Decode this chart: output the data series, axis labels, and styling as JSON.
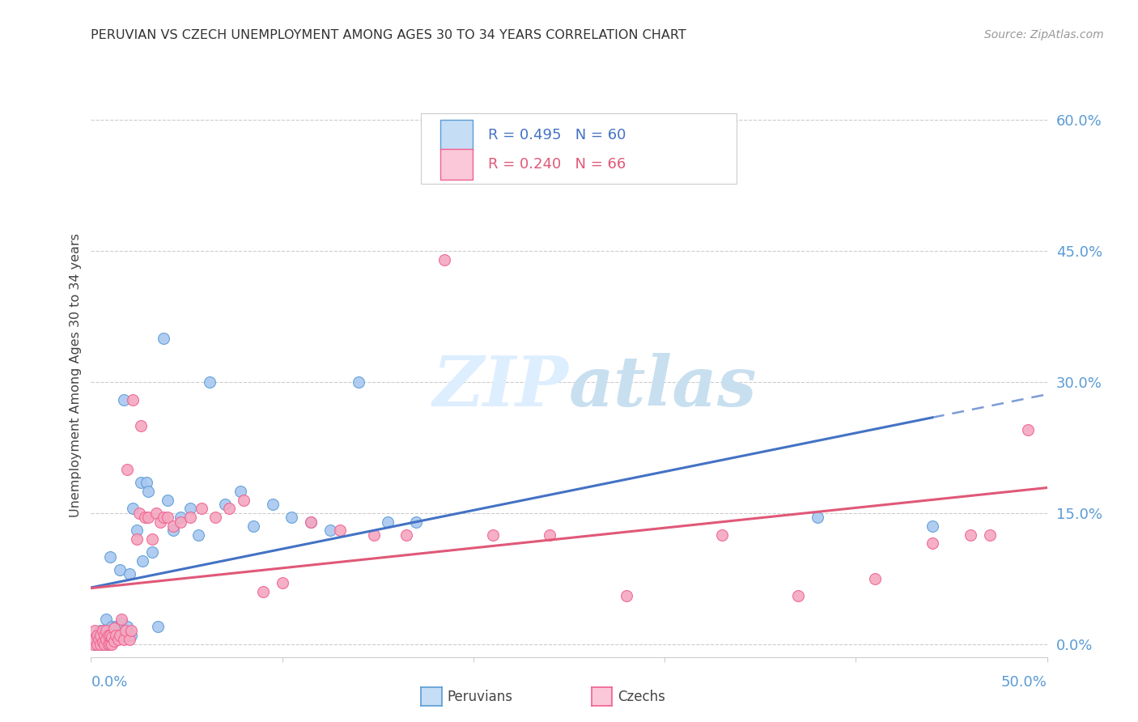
{
  "title": "PERUVIAN VS CZECH UNEMPLOYMENT AMONG AGES 30 TO 34 YEARS CORRELATION CHART",
  "source": "Source: ZipAtlas.com",
  "ylabel": "Unemployment Among Ages 30 to 34 years",
  "ytick_labels": [
    "0.0%",
    "15.0%",
    "30.0%",
    "45.0%",
    "60.0%"
  ],
  "ytick_values": [
    0.0,
    0.15,
    0.3,
    0.45,
    0.6
  ],
  "xmin": 0.0,
  "xmax": 0.5,
  "ymin": -0.015,
  "ymax": 0.63,
  "peruvian_color": "#a8c8f0",
  "czech_color": "#f4a8c0",
  "peruvian_edge_color": "#5b9bd5",
  "czech_edge_color": "#f06090",
  "peruvian_line_color": "#4472c4",
  "czech_line_color": "#e05878",
  "legend_peruvian_fill": "#c5ddf5",
  "legend_czech_fill": "#fac8d8",
  "background_color": "#ffffff",
  "watermark_color": "#ddeeff",
  "peruvian_x": [
    0.001,
    0.002,
    0.003,
    0.003,
    0.004,
    0.004,
    0.005,
    0.005,
    0.006,
    0.006,
    0.007,
    0.007,
    0.008,
    0.008,
    0.008,
    0.009,
    0.009,
    0.01,
    0.01,
    0.01,
    0.01,
    0.011,
    0.012,
    0.013,
    0.013,
    0.014,
    0.015,
    0.016,
    0.017,
    0.018,
    0.019,
    0.02,
    0.021,
    0.022,
    0.024,
    0.026,
    0.027,
    0.029,
    0.03,
    0.032,
    0.035,
    0.038,
    0.04,
    0.043,
    0.047,
    0.052,
    0.056,
    0.062,
    0.07,
    0.078,
    0.085,
    0.095,
    0.105,
    0.115,
    0.125,
    0.14,
    0.155,
    0.17,
    0.38,
    0.44
  ],
  "peruvian_y": [
    0.005,
    0.0,
    0.002,
    0.01,
    0.0,
    0.008,
    0.002,
    0.015,
    0.0,
    0.005,
    0.0,
    0.012,
    0.003,
    0.008,
    0.028,
    0.0,
    0.01,
    0.002,
    0.008,
    0.015,
    0.1,
    0.02,
    0.01,
    0.005,
    0.02,
    0.01,
    0.085,
    0.025,
    0.28,
    0.01,
    0.02,
    0.08,
    0.01,
    0.155,
    0.13,
    0.185,
    0.095,
    0.185,
    0.175,
    0.105,
    0.02,
    0.35,
    0.165,
    0.13,
    0.145,
    0.155,
    0.125,
    0.3,
    0.16,
    0.175,
    0.135,
    0.16,
    0.145,
    0.14,
    0.13,
    0.3,
    0.14,
    0.14,
    0.145,
    0.135
  ],
  "czech_x": [
    0.001,
    0.002,
    0.002,
    0.003,
    0.003,
    0.004,
    0.005,
    0.005,
    0.006,
    0.006,
    0.007,
    0.007,
    0.008,
    0.008,
    0.009,
    0.009,
    0.01,
    0.01,
    0.011,
    0.011,
    0.012,
    0.012,
    0.013,
    0.014,
    0.015,
    0.016,
    0.017,
    0.018,
    0.019,
    0.02,
    0.021,
    0.022,
    0.024,
    0.025,
    0.026,
    0.028,
    0.03,
    0.032,
    0.034,
    0.036,
    0.038,
    0.04,
    0.043,
    0.047,
    0.052,
    0.058,
    0.065,
    0.072,
    0.08,
    0.09,
    0.1,
    0.115,
    0.13,
    0.148,
    0.165,
    0.185,
    0.21,
    0.24,
    0.28,
    0.33,
    0.37,
    0.41,
    0.44,
    0.46,
    0.47,
    0.49
  ],
  "czech_y": [
    0.0,
    0.005,
    0.015,
    0.0,
    0.01,
    0.005,
    0.0,
    0.01,
    0.002,
    0.015,
    0.0,
    0.01,
    0.005,
    0.015,
    0.0,
    0.01,
    0.0,
    0.01,
    0.0,
    0.008,
    0.003,
    0.018,
    0.01,
    0.005,
    0.01,
    0.028,
    0.005,
    0.015,
    0.2,
    0.005,
    0.015,
    0.28,
    0.12,
    0.15,
    0.25,
    0.145,
    0.145,
    0.12,
    0.15,
    0.14,
    0.145,
    0.145,
    0.135,
    0.14,
    0.145,
    0.155,
    0.145,
    0.155,
    0.165,
    0.06,
    0.07,
    0.14,
    0.13,
    0.125,
    0.125,
    0.44,
    0.125,
    0.125,
    0.055,
    0.125,
    0.055,
    0.075,
    0.115,
    0.125,
    0.125,
    0.245
  ]
}
